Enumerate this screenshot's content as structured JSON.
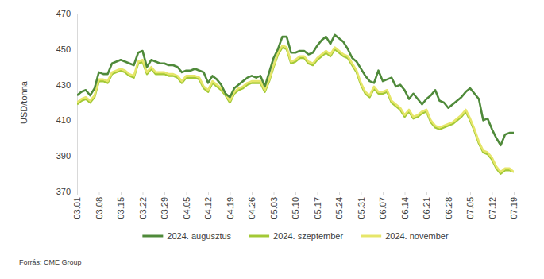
{
  "chart_data": {
    "type": "line",
    "y_label": "USD/tonna",
    "source": "Forrás: CME Group",
    "legend": "bottom",
    "grid": false,
    "ylim": [
      370,
      470
    ],
    "yticks": [
      370,
      390,
      410,
      430,
      450,
      470
    ],
    "categories": [
      "03.01",
      null,
      null,
      null,
      null,
      "03.08",
      null,
      null,
      null,
      null,
      "03.15",
      null,
      null,
      null,
      null,
      "03.22",
      null,
      null,
      null,
      null,
      "03.29",
      null,
      null,
      null,
      null,
      "04.05",
      null,
      null,
      null,
      null,
      "04.12",
      null,
      null,
      null,
      null,
      "04.19",
      null,
      null,
      null,
      null,
      "04.26",
      null,
      null,
      null,
      null,
      "05.03",
      null,
      null,
      null,
      null,
      "05.10",
      null,
      null,
      null,
      null,
      "05.17",
      null,
      null,
      null,
      null,
      "05.24",
      null,
      null,
      null,
      null,
      "05.31",
      null,
      null,
      null,
      null,
      "06.07",
      null,
      null,
      null,
      null,
      "06.14",
      null,
      null,
      null,
      null,
      "06.21",
      null,
      null,
      null,
      null,
      "06.28",
      null,
      null,
      null,
      null,
      "07.05",
      null,
      null,
      null,
      null,
      "07.12",
      null,
      null,
      null,
      null,
      "07.19"
    ],
    "series": [
      {
        "name": "2024. augusztus",
        "color": "#4f8a3a",
        "values": [
          424,
          426,
          427,
          424,
          428,
          437,
          436,
          436,
          442,
          443,
          444,
          443,
          442,
          441,
          448,
          449,
          440,
          444,
          443,
          442,
          442,
          441,
          441,
          440,
          437,
          438,
          438,
          439,
          438,
          437,
          431,
          435,
          433,
          430,
          425,
          423,
          428,
          430,
          432,
          434,
          435,
          434,
          435,
          429,
          437,
          445,
          450,
          457,
          457,
          448,
          448,
          449,
          449,
          447,
          448,
          452,
          455,
          457,
          453,
          458,
          456,
          454,
          450,
          445,
          443,
          439,
          435,
          432,
          431,
          438,
          432,
          433,
          434,
          429,
          430,
          427,
          422,
          425,
          422,
          419,
          422,
          424,
          427,
          421,
          420,
          417,
          419,
          421,
          423,
          426,
          428,
          425,
          422,
          410,
          411,
          405,
          400,
          396,
          402,
          403,
          403
        ]
      },
      {
        "name": "2024. szeptember",
        "color": "#a3c936",
        "values": [
          419,
          421,
          422,
          420,
          423,
          432,
          432,
          431,
          436,
          437,
          438,
          437,
          435,
          434,
          442,
          443,
          436,
          439,
          436,
          436,
          436,
          435,
          435,
          434,
          431,
          434,
          434,
          434,
          433,
          428,
          426,
          431,
          429,
          427,
          424,
          420,
          425,
          427,
          428,
          430,
          431,
          431,
          431,
          426,
          432,
          440,
          447,
          451,
          450,
          442,
          443,
          445,
          445,
          442,
          441,
          444,
          446,
          448,
          446,
          450,
          448,
          446,
          445,
          441,
          437,
          430,
          425,
          423,
          428,
          425,
          425,
          426,
          420,
          418,
          416,
          412,
          415,
          411,
          412,
          414,
          415,
          409,
          406,
          405,
          406,
          407,
          408,
          410,
          412,
          415,
          410,
          404,
          397,
          392,
          391,
          388,
          383,
          380,
          382,
          382,
          381
        ]
      },
      {
        "name": "2024. november",
        "color": "#e6e66a",
        "values": [
          420,
          422,
          423,
          421,
          424,
          433,
          433,
          432,
          437,
          438,
          439,
          438,
          436,
          435,
          443,
          444,
          437,
          440,
          437,
          437,
          437,
          436,
          436,
          435,
          432,
          435,
          435,
          435,
          434,
          429,
          427,
          432,
          430,
          428,
          425,
          421,
          426,
          428,
          429,
          431,
          432,
          432,
          432,
          427,
          433,
          441,
          448,
          452,
          451,
          443,
          444,
          446,
          446,
          443,
          442,
          445,
          447,
          449,
          447,
          451,
          449,
          447,
          446,
          442,
          438,
          431,
          426,
          424,
          429,
          426,
          426,
          427,
          421,
          419,
          417,
          413,
          416,
          412,
          413,
          415,
          416,
          410,
          407,
          406,
          407,
          408,
          409,
          411,
          413,
          416,
          411,
          405,
          398,
          393,
          392,
          389,
          384,
          381,
          383,
          383,
          381
        ]
      }
    ]
  }
}
